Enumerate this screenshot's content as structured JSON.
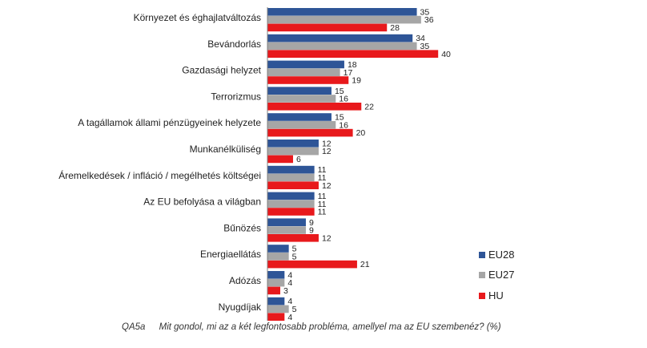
{
  "chart_data": {
    "type": "bar",
    "orientation": "horizontal",
    "categories": [
      "Környezet és éghajlatváltozás",
      "Bevándorlás",
      "Gazdasági helyzet",
      "Terrorizmus",
      "A tagállamok állami pénzügyeinek helyzete",
      "Munkanélküliség",
      "Áremelkedések / infláció / megélhetés költségei",
      "Az EU befolyása a világban",
      "Bűnözés",
      "Energiaellátás",
      "Adózás",
      "Nyugdíjak"
    ],
    "series": [
      {
        "name": "EU28",
        "color": "#2e5597",
        "values": [
          35,
          34,
          18,
          15,
          15,
          12,
          11,
          11,
          9,
          5,
          4,
          4
        ]
      },
      {
        "name": "EU27",
        "color": "#a6a6a6",
        "values": [
          36,
          35,
          17,
          16,
          16,
          12,
          11,
          11,
          9,
          5,
          4,
          5
        ]
      },
      {
        "name": "HU",
        "color": "#e8191c",
        "values": [
          28,
          40,
          19,
          22,
          20,
          6,
          12,
          11,
          12,
          21,
          3,
          4
        ]
      }
    ],
    "xlim": [
      0,
      40
    ],
    "grid": false,
    "legend": "bottom-right",
    "value_labels": true
  },
  "footnote": {
    "code": "QA5a",
    "question": "Mit gondol, mi az a két legfontosabb probléma, amellyel ma az EU szembenéz? (%)"
  }
}
